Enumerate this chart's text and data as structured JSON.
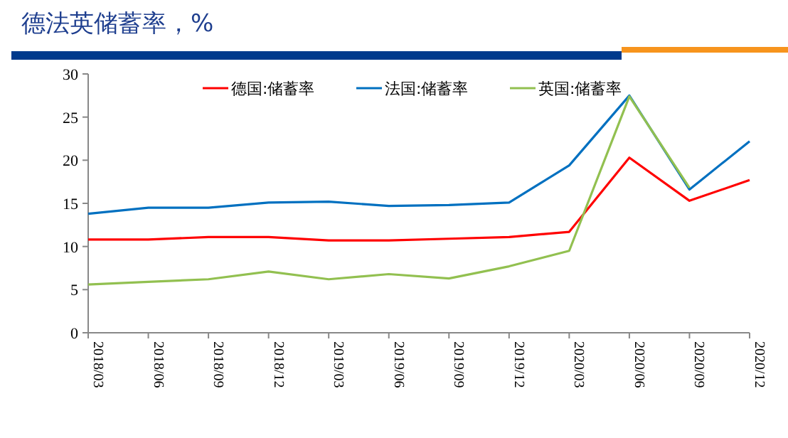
{
  "chart_data": {
    "type": "line",
    "title": "德法英储蓄率，%",
    "categories": [
      "2018/03",
      "2018/06",
      "2018/09",
      "2018/12",
      "2019/03",
      "2019/06",
      "2019/09",
      "2019/12",
      "2020/03",
      "2020/06",
      "2020/09",
      "2020/12"
    ],
    "series": [
      {
        "name": "德国:储蓄率",
        "color": "#ff0000",
        "values": [
          10.8,
          10.8,
          11.1,
          11.1,
          10.7,
          10.7,
          10.9,
          11.1,
          11.7,
          20.3,
          15.3,
          17.7
        ]
      },
      {
        "name": "法国:储蓄率",
        "color": "#0070c0",
        "values": [
          13.8,
          14.5,
          14.5,
          15.1,
          15.2,
          14.7,
          14.8,
          15.1,
          19.4,
          27.5,
          16.6,
          22.2
        ]
      },
      {
        "name": "英国:储蓄率",
        "color": "#92c050",
        "values": [
          5.6,
          5.9,
          6.2,
          7.1,
          6.2,
          6.8,
          6.3,
          7.7,
          9.5,
          27.4,
          16.8,
          null
        ]
      }
    ],
    "ylim": [
      0,
      30
    ],
    "yticks": [
      0,
      5,
      10,
      15,
      20,
      25,
      30
    ],
    "legend": "top",
    "grid": false,
    "marker": "none",
    "line_style": "solid"
  }
}
